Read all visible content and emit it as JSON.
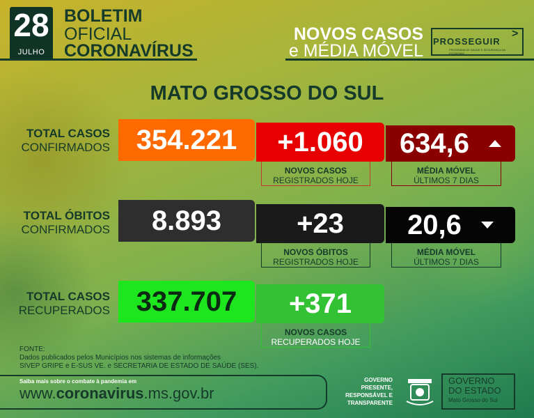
{
  "header": {
    "day": "28",
    "month": "JULHO",
    "title_line1": "BOLETIM",
    "title_line2": "OFICIAL",
    "title_line3": "CORONAVÍRUS",
    "section_line1": "NOVOS CASOS",
    "section_line2": "e MÉDIA MÓVEL",
    "program_logo": "PROSSEGUIR",
    "program_logo_sub": "PROGRAMA DE SAÚDE E SEGURANÇA DA ECONOMIA"
  },
  "state": "MATO GROSSO DO SUL",
  "cases": {
    "label_bold": "TOTAL CASOS",
    "label_sub": "CONFIRMADOS",
    "total": "354.221",
    "new": "+1.060",
    "new_label_bold": "NOVOS CASOS",
    "new_label_sub": "REGISTRADOS HOJE",
    "moving_avg": "634,6",
    "avg_label_bold": "MÉDIA MÓVEL",
    "avg_label_sub": "ÚLTIMOS 7 DIAS",
    "trend_icon": "triangle-up-icon"
  },
  "deaths": {
    "label_bold": "TOTAL ÓBITOS",
    "label_sub": "CONFIRMADOS",
    "total": "8.893",
    "new": "+23",
    "new_label_bold": "NOVOS ÓBITOS",
    "new_label_sub": "REGISTRADOS HOJE",
    "moving_avg": "20,6",
    "avg_label_bold": "MÉDIA MÓVEL",
    "avg_label_sub": "ÚLTIMOS 7 DIAS",
    "trend_icon": "triangle-down-icon"
  },
  "recovered": {
    "label_bold": "TOTAL CASOS",
    "label_sub": "RECUPERADOS",
    "total": "337.707",
    "new": "+371",
    "new_label_bold": "NOVOS CASOS",
    "new_label_sub": "RECUPERADOS HOJE"
  },
  "source": {
    "title": "FONTE:",
    "line1": "Dados publicados pelos Municípios nos sistemas de informações",
    "line2": "SIVEP GRIPE e E-SUS VE. e SECRETARIA DE ESTADO DE SAÚDE (SES)."
  },
  "footer": {
    "more_info": "Saiba mais sobre o combate à pandemia em",
    "url_prefix": "www.",
    "url_bold": "coronavirus",
    "url_suffix": ".ms.gov.br",
    "gov_slogan_1": "GOVERNO",
    "gov_slogan_2": "PRESENTE,",
    "gov_slogan_3": "RESPONSÁVEL E",
    "gov_slogan_4": "TRANSPARENTE",
    "gov_logo_1": "GOVERNO",
    "gov_logo_2": "DO ESTADO",
    "gov_logo_3": "Mato Grosso do Sul"
  },
  "colors": {
    "dark_green": "#163a2a",
    "orange": "#ff6a00",
    "red": "#e60000",
    "dark_red": "#8a0000",
    "charcoal": "#2e2e2e",
    "near_black": "#1a1a1a",
    "black": "#050505",
    "bright_green": "#1ee61e",
    "green": "#33c233"
  }
}
